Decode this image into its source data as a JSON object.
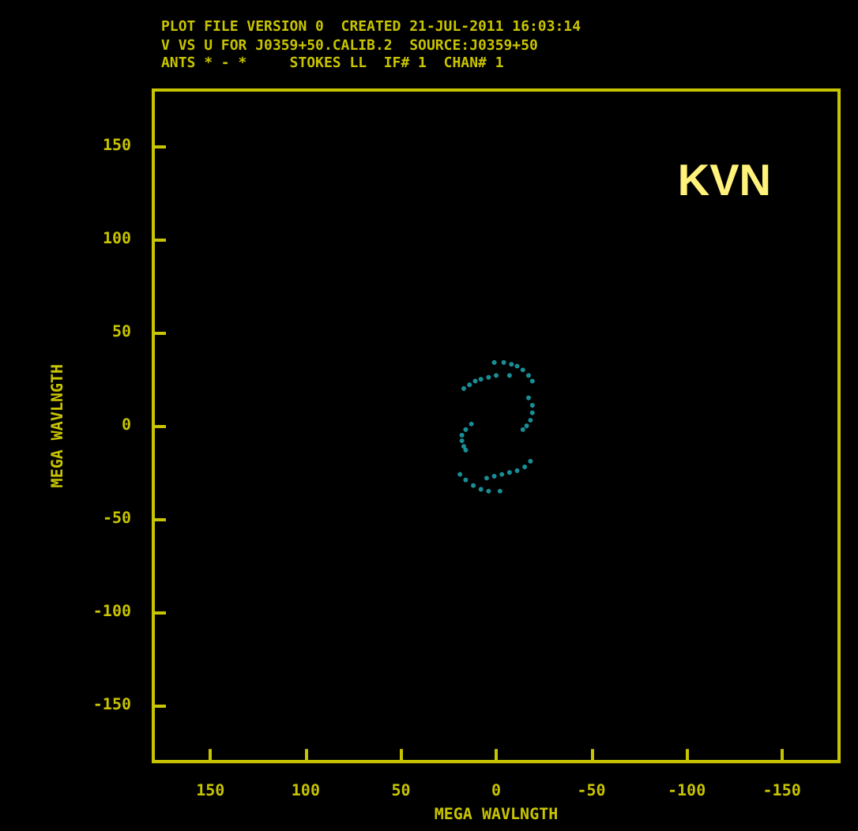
{
  "chart_data": {
    "type": "scatter",
    "title": "PLOT FILE VERSION 0  CREATED 21-JUL-2011 16:03:14",
    "subtitle": "V VS U FOR J0359+50.CALIB.2  SOURCE:J0359+50\nANTS * - *     STOKES LL  IF# 1  CHAN# 1",
    "xlabel": "MEGA WAVLNGTH",
    "ylabel": "MEGA WAVLNGTH",
    "annotations": [
      "KVN"
    ],
    "series": [
      {
        "color": "#1fb2bb",
        "x": [
          1,
          -4,
          -8,
          -11,
          -14,
          -17,
          -19
        ],
        "values": [
          34,
          34,
          33,
          32,
          30,
          27,
          24
        ]
      },
      {
        "color": "#1fb2bb",
        "x": [
          17,
          14,
          11,
          8,
          4,
          0,
          -7
        ],
        "values": [
          20,
          22,
          24,
          25,
          26,
          27,
          27
        ]
      },
      {
        "color": "#1fb2bb",
        "x": [
          -17,
          -19,
          -19,
          -18,
          -16,
          -14
        ],
        "values": [
          15,
          11,
          7,
          3,
          0,
          -2
        ]
      },
      {
        "color": "#1fb2bb",
        "x": [
          13,
          16,
          18,
          18,
          17,
          16
        ],
        "values": [
          1,
          -2,
          -5,
          -8,
          -11,
          -13
        ]
      },
      {
        "color": "#1fb2bb",
        "x": [
          -18,
          -15,
          -11,
          -7,
          -3,
          1,
          5
        ],
        "values": [
          -19,
          -22,
          -24,
          -25,
          -26,
          -27,
          -28
        ]
      },
      {
        "color": "#1fb2bb",
        "x": [
          19,
          16,
          12,
          8,
          4,
          -2
        ],
        "values": [
          -26,
          -29,
          -32,
          -34,
          -35,
          -35
        ]
      }
    ],
    "xlim": [
      180,
      -180
    ],
    "ylim": [
      -180,
      180
    ],
    "xticks": [
      150,
      100,
      50,
      0,
      -50,
      -100,
      -150
    ],
    "yticks": [
      -150,
      -100,
      -50,
      0,
      50,
      100,
      150
    ],
    "marker": "circle",
    "grid": false
  }
}
